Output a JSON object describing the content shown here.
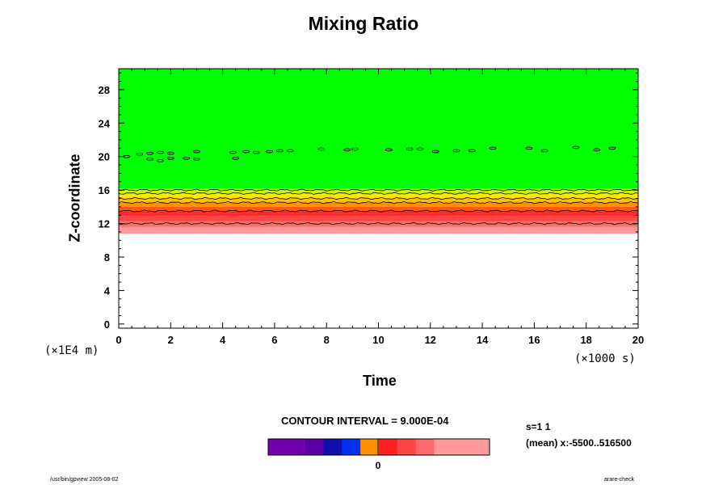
{
  "title": "Mixing Ratio",
  "footer": {
    "left": "/usr/bin/gpview 2005-08-02",
    "right": "arare-check"
  },
  "info": {
    "line1": "s=1 1",
    "line2": "(mean) x:-5500..516500"
  },
  "colorbar": {
    "contour_interval_label": "CONTOUR INTERVAL = 9.000E-04",
    "zero_label": "0",
    "colors": [
      "#7000b0",
      "#7000b0",
      "#5a00a8",
      "#1010b0",
      "#0030f0",
      "#ff9000",
      "#ff2020",
      "#ff4646",
      "#ff6a6a",
      "#ff9a9a",
      "#ff9a9a",
      "#ff9a9a"
    ]
  },
  "chart_data": {
    "type": "heatmap",
    "title": "Mixing Ratio",
    "xlabel": "Time",
    "ylabel": "Z-coordinate",
    "x_unit": "(×1000 s)",
    "y_unit": "(×1E4 m)",
    "xlim": [
      0,
      20
    ],
    "ylim": [
      -0.5,
      30.5
    ],
    "xticks": [
      0,
      2,
      4,
      6,
      8,
      10,
      12,
      14,
      16,
      18,
      20
    ],
    "yticks": [
      0,
      4,
      8,
      12,
      16,
      20,
      24,
      28
    ],
    "bands": [
      {
        "z": [
          10.8,
          11.6
        ],
        "color": "#ff9a9a"
      },
      {
        "z": [
          11.6,
          12.3
        ],
        "color": "#ff6a6a"
      },
      {
        "z": [
          12.3,
          12.9
        ],
        "color": "#ff4646"
      },
      {
        "z": [
          12.9,
          13.5
        ],
        "color": "#ff2a2a"
      },
      {
        "z": [
          13.5,
          14.0
        ],
        "color": "#ff5a10"
      },
      {
        "z": [
          14.0,
          14.5
        ],
        "color": "#ff9000"
      },
      {
        "z": [
          14.5,
          15.0
        ],
        "color": "#ffc000"
      },
      {
        "z": [
          15.0,
          15.6
        ],
        "color": "#ffe800"
      },
      {
        "z": [
          15.6,
          16.2
        ],
        "color": "#c8ff00"
      },
      {
        "z": [
          16.2,
          30.5
        ],
        "color": "#00ff00"
      }
    ],
    "contour_levels_z": [
      12.0,
      13.5,
      14.5,
      15.0,
      15.6,
      16.0
    ],
    "small_contours": [
      [
        0.3,
        20.0
      ],
      [
        0.8,
        20.3
      ],
      [
        1.2,
        20.4
      ],
      [
        1.2,
        19.7
      ],
      [
        1.6,
        20.5
      ],
      [
        1.6,
        19.5
      ],
      [
        2.0,
        20.4
      ],
      [
        2.0,
        19.8
      ],
      [
        2.6,
        19.8
      ],
      [
        3.0,
        20.6
      ],
      [
        3.0,
        19.7
      ],
      [
        4.4,
        20.5
      ],
      [
        4.5,
        19.8
      ],
      [
        4.9,
        20.6
      ],
      [
        5.3,
        20.5
      ],
      [
        5.8,
        20.6
      ],
      [
        6.2,
        20.7
      ],
      [
        6.6,
        20.7
      ],
      [
        7.8,
        20.9
      ],
      [
        8.8,
        20.8
      ],
      [
        9.1,
        20.9
      ],
      [
        10.4,
        20.8
      ],
      [
        11.2,
        20.9
      ],
      [
        11.6,
        20.9
      ],
      [
        12.2,
        20.6
      ],
      [
        13.0,
        20.7
      ],
      [
        13.6,
        20.7
      ],
      [
        14.4,
        21.0
      ],
      [
        15.8,
        21.0
      ],
      [
        16.4,
        20.7
      ],
      [
        17.6,
        21.1
      ],
      [
        18.4,
        20.8
      ],
      [
        19.0,
        21.0
      ]
    ]
  }
}
